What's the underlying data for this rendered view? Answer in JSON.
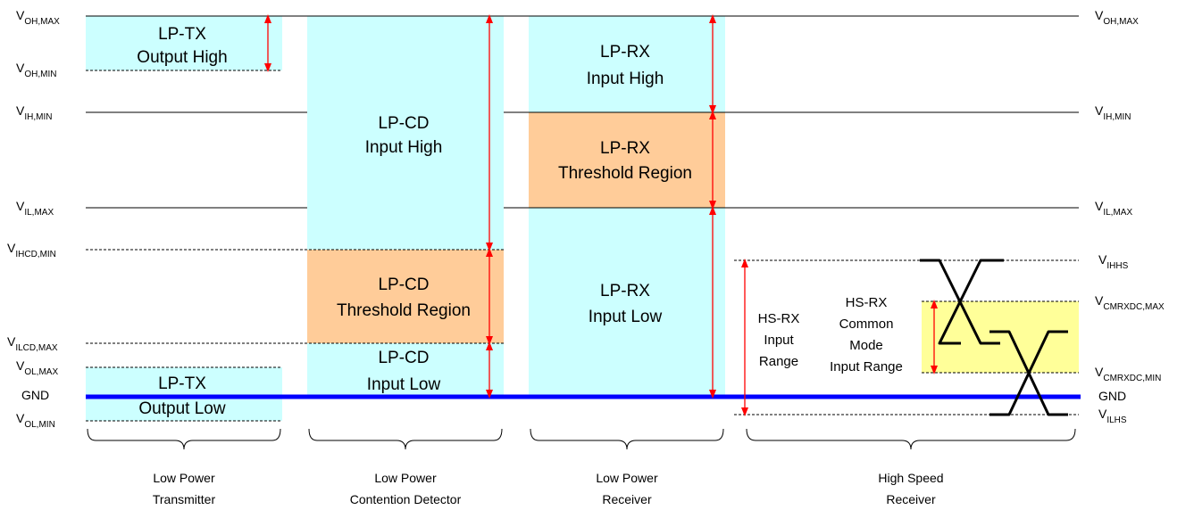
{
  "colors": {
    "lp_high": "#ccffff",
    "threshold": "#ffcc99",
    "hs_common_mode": "#ffff99",
    "gnd_line": "#0000ff",
    "arrow": "#ff0000",
    "line": "#000000"
  },
  "levels": {
    "voh_max": {
      "main": "V",
      "sub": "OH,MAX"
    },
    "voh_min": {
      "main": "V",
      "sub": "OH,MIN"
    },
    "vih_min": {
      "main": "V",
      "sub": "IH,MIN"
    },
    "vil_max": {
      "main": "V",
      "sub": "IL,MAX"
    },
    "vihcd_min": {
      "main": "V",
      "sub": "IHCD,MIN"
    },
    "vilcd_max": {
      "main": "V",
      "sub": "ILCD,MAX"
    },
    "vol_max": {
      "main": "V",
      "sub": "OL,MAX"
    },
    "gnd": "GND",
    "vol_min": {
      "main": "V",
      "sub": "OL,MIN"
    },
    "vihhs": {
      "main": "V",
      "sub": "IHHS"
    },
    "vcmrxdc_max": {
      "main": "V",
      "sub": "CMRXDC,MAX"
    },
    "vcmrxdc_min": {
      "main": "V",
      "sub": "CMRXDC,MIN"
    },
    "vilhs": {
      "main": "V",
      "sub": "ILHS"
    }
  },
  "regions": {
    "lptx_high": [
      "LP-TX",
      "Output High"
    ],
    "lptx_low": [
      "LP-TX",
      "Output Low"
    ],
    "lpcd_high": [
      "LP-CD",
      "Input High"
    ],
    "lpcd_threshold": [
      "LP-CD",
      "Threshold Region"
    ],
    "lpcd_low": [
      "LP-CD",
      "Input Low"
    ],
    "lprx_high": [
      "LP-RX",
      "Input High"
    ],
    "lprx_threshold": [
      "LP-RX",
      "Threshold Region"
    ],
    "lprx_low": [
      "LP-RX",
      "Input Low"
    ],
    "hsrx_range": [
      "HS-RX",
      "Input",
      "Range"
    ],
    "hsrx_common": [
      "HS-RX",
      "Common",
      "Mode",
      "Input Range"
    ]
  },
  "categories": {
    "tx": [
      "Low Power",
      "Transmitter"
    ],
    "cd": [
      "Low Power",
      "Contention Detector"
    ],
    "rx": [
      "Low Power",
      "Receiver"
    ],
    "hs": [
      "High Speed",
      "Receiver"
    ]
  }
}
